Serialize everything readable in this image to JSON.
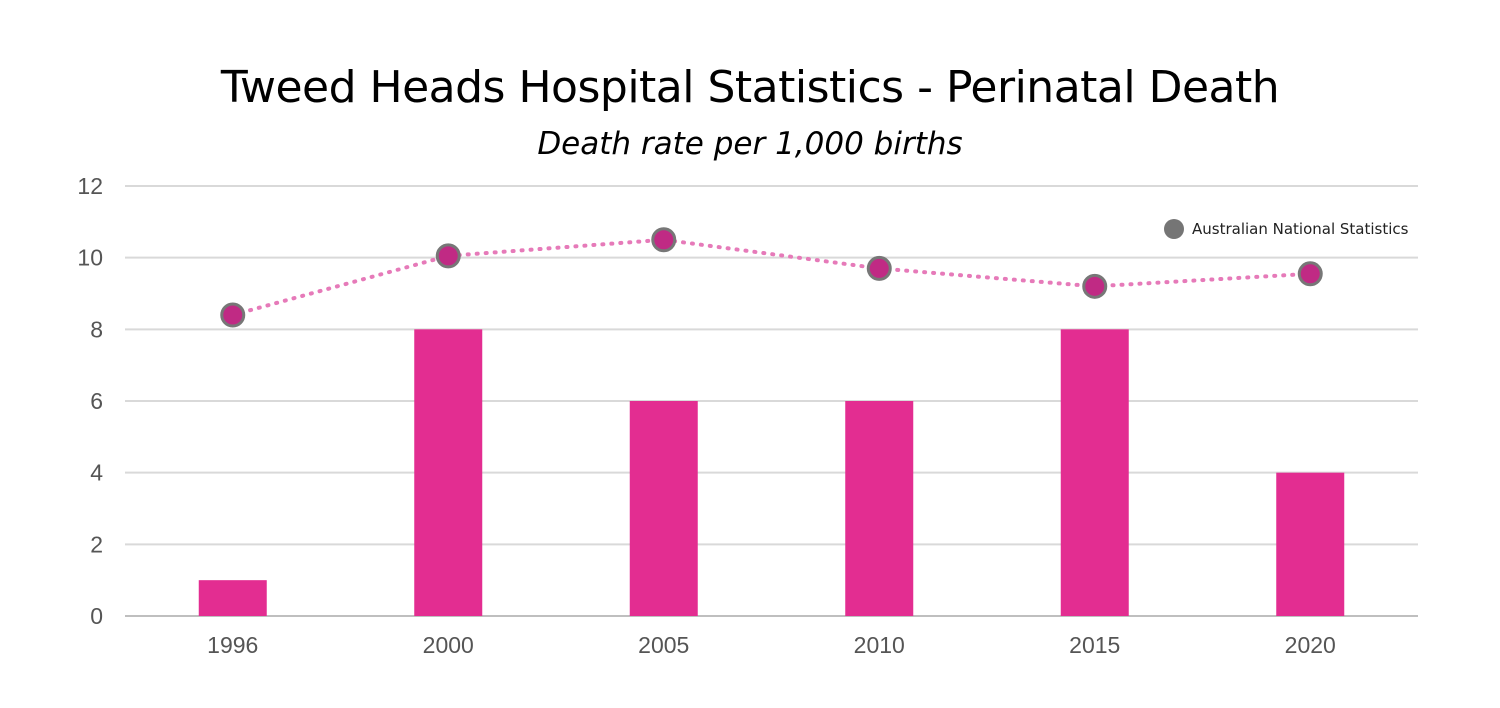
{
  "chart_data": {
    "type": "bar",
    "title": "Tweed Heads Hospital Statistics - Perinatal Death",
    "subtitle": "Death rate per 1,000 births",
    "categories": [
      "1996",
      "2000",
      "2005",
      "2010",
      "2015",
      "2020"
    ],
    "series": [
      {
        "name": "Tweed Heads Hospital",
        "kind": "bar",
        "values": [
          1,
          8,
          6,
          6,
          8,
          4
        ]
      },
      {
        "name": "Australian National Statistics",
        "kind": "line-dotted-markers",
        "values": [
          8.4,
          10.05,
          10.5,
          9.7,
          9.2,
          9.55
        ]
      }
    ],
    "ylim": [
      0,
      12
    ],
    "yticks": [
      "0",
      "2",
      "4",
      "6",
      "8",
      "10",
      "12"
    ],
    "grid": true,
    "legend": {
      "position": "top-right",
      "label": "Australian National Statistics"
    },
    "colors": {
      "bar": "#e32d91",
      "line": "#e67ab9",
      "marker_fill": "#c02a84",
      "marker_stroke": "#777777",
      "legend_dot": "#757575",
      "grid": "#d9d9d9",
      "axis": "#bfbfbf"
    }
  }
}
